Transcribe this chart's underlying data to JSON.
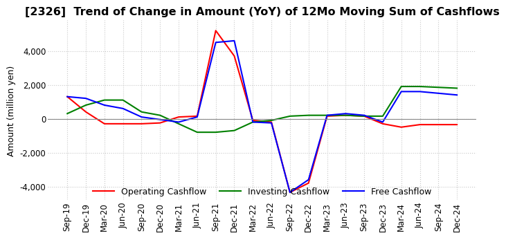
{
  "title": "[2326]  Trend of Change in Amount (YoY) of 12Mo Moving Sum of Cashflows",
  "ylabel": "Amount (million yen)",
  "title_fontsize": 11.5,
  "label_fontsize": 9,
  "tick_fontsize": 8.5,
  "x_labels": [
    "Sep-19",
    "Dec-19",
    "Mar-20",
    "Jun-20",
    "Sep-20",
    "Dec-20",
    "Mar-21",
    "Jun-21",
    "Sep-21",
    "Dec-21",
    "Mar-22",
    "Jun-22",
    "Sep-22",
    "Dec-22",
    "Mar-23",
    "Jun-23",
    "Sep-23",
    "Dec-23",
    "Mar-24",
    "Jun-24",
    "Sep-24",
    "Dec-24"
  ],
  "operating_cashflow": [
    1300,
    400,
    -300,
    -300,
    -300,
    -250,
    100,
    150,
    5200,
    3700,
    -100,
    -200,
    -4350,
    -3800,
    150,
    200,
    150,
    -300,
    -500,
    -350,
    -350,
    -350
  ],
  "investing_cashflow": [
    300,
    800,
    1100,
    1100,
    400,
    200,
    -300,
    -800,
    -800,
    -700,
    -200,
    -100,
    150,
    200,
    200,
    200,
    150,
    150,
    1900,
    1900,
    1850,
    1800
  ],
  "free_cashflow": [
    1300,
    1200,
    800,
    600,
    100,
    -50,
    -200,
    100,
    4500,
    4600,
    -200,
    -250,
    -4350,
    -3600,
    200,
    300,
    200,
    -200,
    1600,
    1600,
    1500,
    1400
  ],
  "ylim": [
    -4800,
    5800
  ],
  "yticks": [
    -4000,
    -2000,
    0,
    2000,
    4000
  ],
  "operating_color": "#ff0000",
  "investing_color": "#008000",
  "free_color": "#0000ff",
  "bg_color": "#ffffff",
  "grid_color": "#c8c8c8"
}
